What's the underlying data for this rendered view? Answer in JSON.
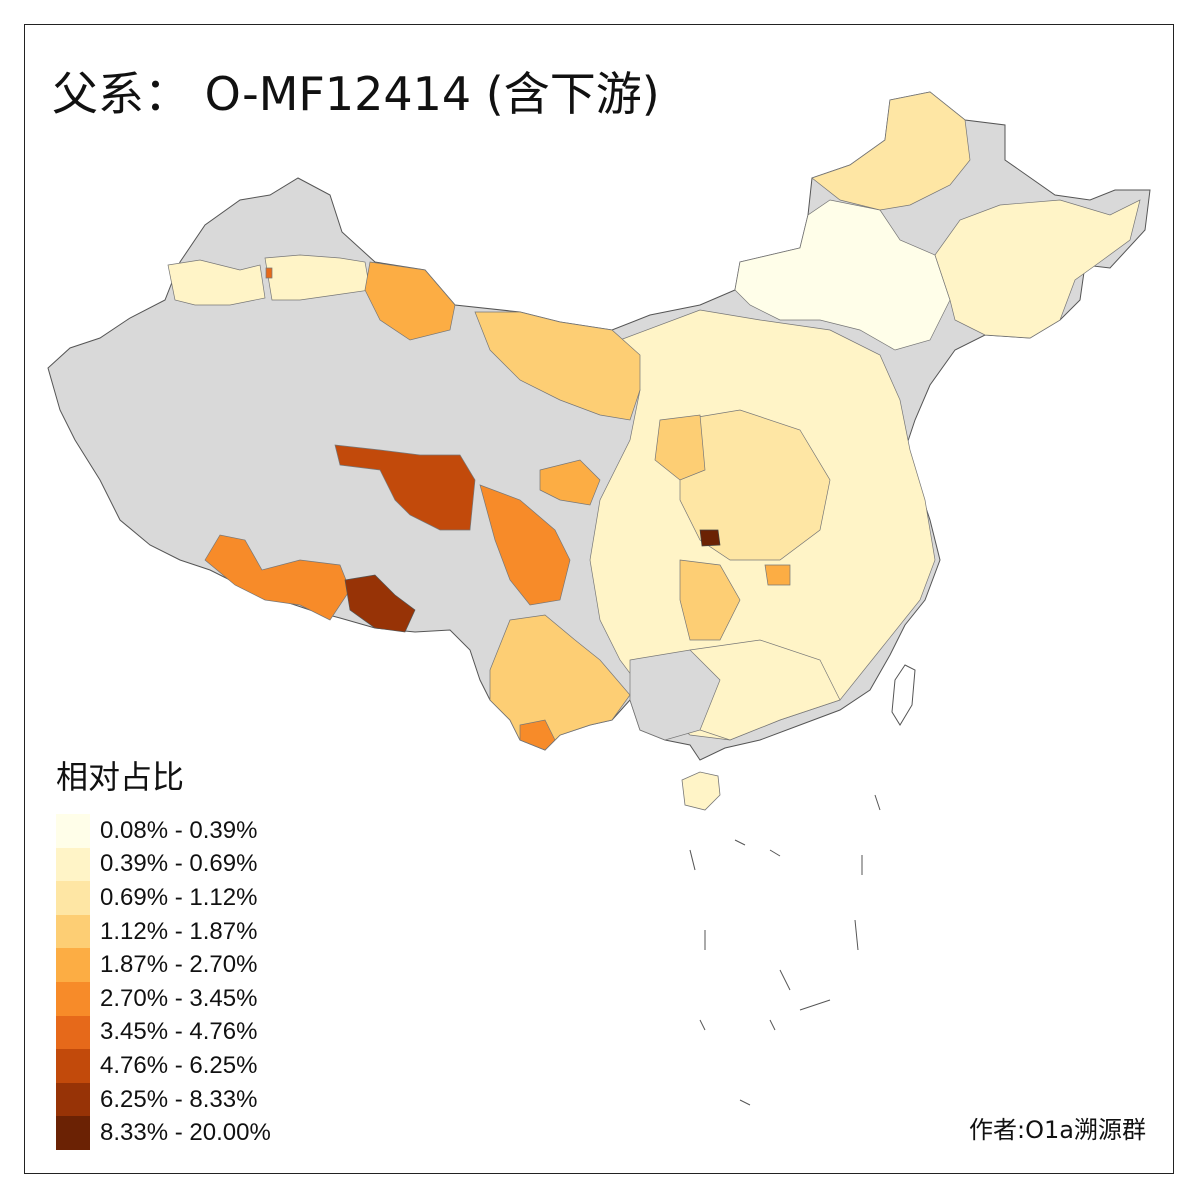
{
  "map": {
    "title": "父系： O-MF12414 (含下游)",
    "credit": "作者:O1a溯源群",
    "no_data_color": "#d9d9d9",
    "border_color": "#555555"
  },
  "legend": {
    "title": "相对占比",
    "items": [
      {
        "label": "0.08% - 0.39%",
        "color": "#fffee9"
      },
      {
        "label": "0.39% - 0.69%",
        "color": "#fff4c7"
      },
      {
        "label": "0.69% - 1.12%",
        "color": "#fee6a4"
      },
      {
        "label": "1.12% - 1.87%",
        "color": "#fdce74"
      },
      {
        "label": "1.87% - 2.70%",
        "color": "#fcad44"
      },
      {
        "label": "2.70% - 3.45%",
        "color": "#f78b29"
      },
      {
        "label": "3.45% - 4.76%",
        "color": "#e6691a"
      },
      {
        "label": "4.76% - 6.25%",
        "color": "#c24a0b"
      },
      {
        "label": "6.25% - 8.33%",
        "color": "#973306"
      },
      {
        "label": "8.33% - 20.00%",
        "color": "#6b2204"
      }
    ]
  }
}
